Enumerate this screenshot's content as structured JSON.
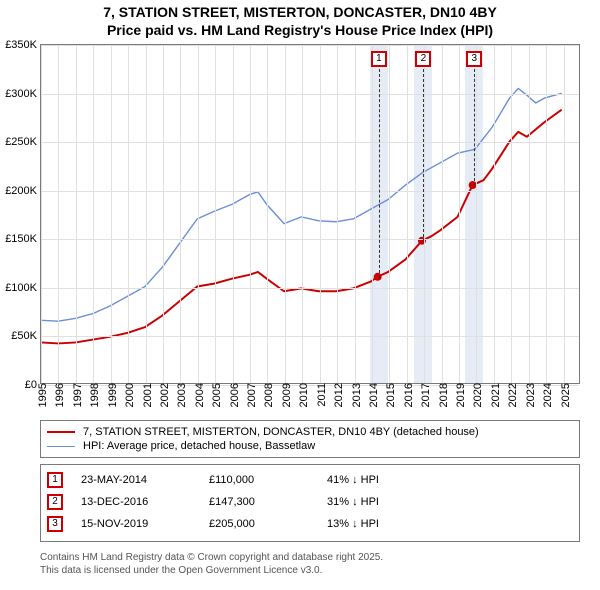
{
  "title": {
    "line1": "7, STATION STREET, MISTERTON, DONCASTER, DN10 4BY",
    "line2": "Price paid vs. HM Land Registry's House Price Index (HPI)"
  },
  "chart": {
    "type": "line",
    "background_color": "#ffffff",
    "grid_color": "#e0e0e0",
    "axis_color": "#7a7a7a",
    "x": {
      "min": 1995,
      "max": 2026,
      "ticks": [
        1995,
        1996,
        1997,
        1998,
        1999,
        2000,
        2001,
        2002,
        2003,
        2004,
        2005,
        2006,
        2007,
        2008,
        2009,
        2010,
        2011,
        2012,
        2013,
        2014,
        2015,
        2016,
        2017,
        2018,
        2019,
        2020,
        2021,
        2022,
        2023,
        2024,
        2025
      ]
    },
    "y": {
      "min": 0,
      "max": 350000,
      "tick_step": 50000,
      "tick_labels": [
        "£0",
        "£50K",
        "£100K",
        "£150K",
        "£200K",
        "£250K",
        "£300K",
        "£350K"
      ]
    },
    "series": [
      {
        "name": "price_paid",
        "color": "#cc0000",
        "line_width": 2,
        "points": [
          [
            1995,
            42000
          ],
          [
            1996,
            41000
          ],
          [
            1997,
            42000
          ],
          [
            1998,
            45000
          ],
          [
            1999,
            48000
          ],
          [
            2000,
            52000
          ],
          [
            2001,
            58000
          ],
          [
            2002,
            70000
          ],
          [
            2003,
            85000
          ],
          [
            2004,
            100000
          ],
          [
            2005,
            103000
          ],
          [
            2006,
            108000
          ],
          [
            2007,
            112000
          ],
          [
            2007.5,
            115000
          ],
          [
            2008,
            108000
          ],
          [
            2009,
            95000
          ],
          [
            2010,
            98000
          ],
          [
            2011,
            95000
          ],
          [
            2012,
            95000
          ],
          [
            2013,
            98000
          ],
          [
            2014,
            105000
          ],
          [
            2014.4,
            110000
          ],
          [
            2015,
            115000
          ],
          [
            2016,
            128000
          ],
          [
            2016.95,
            147300
          ],
          [
            2017.5,
            152000
          ],
          [
            2018,
            158000
          ],
          [
            2019,
            172000
          ],
          [
            2019.87,
            205000
          ],
          [
            2020.5,
            210000
          ],
          [
            2021,
            222000
          ],
          [
            2022,
            250000
          ],
          [
            2022.5,
            260000
          ],
          [
            2023,
            255000
          ],
          [
            2024,
            270000
          ],
          [
            2025,
            283000
          ]
        ]
      },
      {
        "name": "hpi",
        "color": "#6a8fd8",
        "line_width": 1.4,
        "points": [
          [
            1995,
            65000
          ],
          [
            1996,
            64000
          ],
          [
            1997,
            67000
          ],
          [
            1998,
            72000
          ],
          [
            1999,
            80000
          ],
          [
            2000,
            90000
          ],
          [
            2001,
            100000
          ],
          [
            2002,
            120000
          ],
          [
            2003,
            145000
          ],
          [
            2004,
            170000
          ],
          [
            2005,
            178000
          ],
          [
            2006,
            185000
          ],
          [
            2007,
            195000
          ],
          [
            2007.5,
            198000
          ],
          [
            2008,
            185000
          ],
          [
            2009,
            165000
          ],
          [
            2010,
            172000
          ],
          [
            2011,
            168000
          ],
          [
            2012,
            167000
          ],
          [
            2013,
            170000
          ],
          [
            2014,
            180000
          ],
          [
            2015,
            190000
          ],
          [
            2016,
            205000
          ],
          [
            2017,
            218000
          ],
          [
            2018,
            228000
          ],
          [
            2019,
            238000
          ],
          [
            2020,
            242000
          ],
          [
            2021,
            265000
          ],
          [
            2022,
            295000
          ],
          [
            2022.5,
            305000
          ],
          [
            2023,
            298000
          ],
          [
            2023.5,
            290000
          ],
          [
            2024,
            295000
          ],
          [
            2025,
            300000
          ]
        ]
      }
    ],
    "sale_markers": [
      {
        "num": "1",
        "x": 2014.4
      },
      {
        "num": "2",
        "x": 2016.95
      },
      {
        "num": "3",
        "x": 2019.87
      }
    ],
    "marker_border_color": "#cc0000",
    "shaded_band_color": "#e5ecf6",
    "tick_fontsize": 11
  },
  "legend": {
    "items": [
      {
        "color": "#cc0000",
        "width": 2,
        "label": "7, STATION STREET, MISTERTON, DONCASTER, DN10 4BY (detached house)"
      },
      {
        "color": "#6a8fd8",
        "width": 1.4,
        "label": "HPI: Average price, detached house, Bassetlaw"
      }
    ]
  },
  "sales": [
    {
      "num": "1",
      "date": "23-MAY-2014",
      "price": "£110,000",
      "pct": "41% ↓ HPI"
    },
    {
      "num": "2",
      "date": "13-DEC-2016",
      "price": "£147,300",
      "pct": "31% ↓ HPI"
    },
    {
      "num": "3",
      "date": "15-NOV-2019",
      "price": "£205,000",
      "pct": "13% ↓ HPI"
    }
  ],
  "footer": {
    "line1": "Contains HM Land Registry data © Crown copyright and database right 2025.",
    "line2": "This data is licensed under the Open Government Licence v3.0."
  }
}
